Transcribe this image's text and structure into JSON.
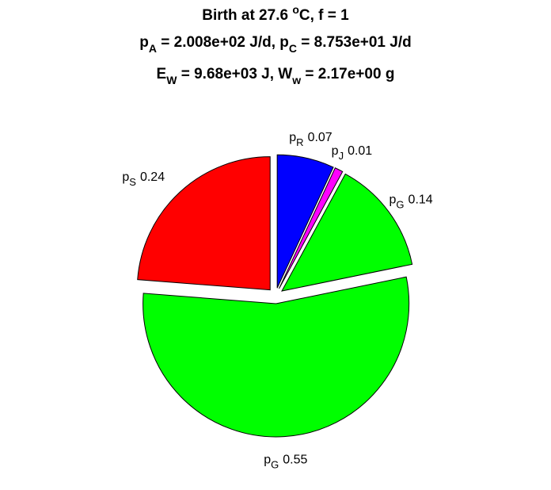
{
  "chart_data": {
    "type": "pie",
    "title": [
      [
        {
          "text": "Birth at 27.6 "
        },
        {
          "text": "o",
          "shift": "sup"
        },
        {
          "text": "C, f = 1"
        }
      ],
      [
        {
          "text": "p"
        },
        {
          "text": "A",
          "shift": "sub"
        },
        {
          "text": " = 2.008e+02 J/d, p"
        },
        {
          "text": "C",
          "shift": "sub"
        },
        {
          "text": " = 8.753e+01 J/d"
        }
      ],
      [
        {
          "text": "E"
        },
        {
          "text": "W",
          "shift": "sub"
        },
        {
          "text": " = 9.68e+03 J, W"
        },
        {
          "text": "w",
          "shift": "sub"
        },
        {
          "text": " = 2.17e+00 g"
        }
      ]
    ],
    "categories": [
      {
        "text": "p",
        "sub": "R"
      },
      {
        "text": "p",
        "sub": "J"
      },
      {
        "text": "p",
        "sub": "G"
      },
      {
        "text": "p",
        "sub": "G"
      },
      {
        "text": "p",
        "sub": "S"
      }
    ],
    "values": [
      0.07,
      0.01,
      0.14,
      0.55,
      0.24
    ],
    "colors": [
      "#0000ff",
      "#ff00ff",
      "#00ff00",
      "#00ff00",
      "#ff0000"
    ],
    "explode": true
  }
}
